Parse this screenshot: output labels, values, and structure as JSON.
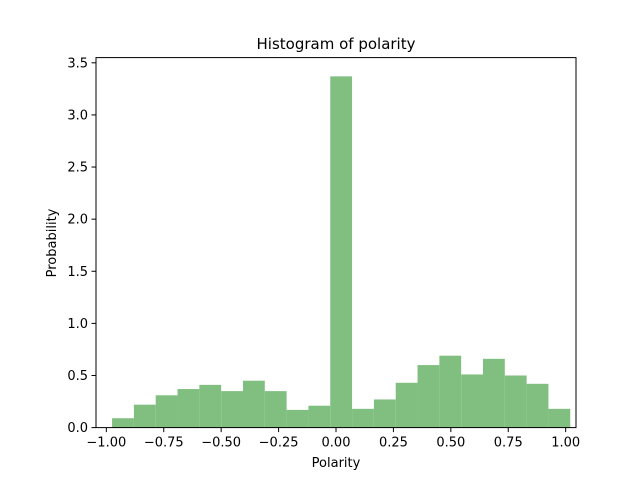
{
  "chart_data": {
    "type": "bar",
    "title": "Histogram of polarity",
    "xlabel": "Polarity",
    "ylabel": "Probability",
    "xlim": [
      -1.045,
      1.045
    ],
    "ylim": [
      0,
      3.55
    ],
    "bar_color": "#80bf80",
    "xticks": [
      -1.0,
      -0.75,
      -0.5,
      -0.25,
      0.0,
      0.25,
      0.5,
      0.75,
      1.0
    ],
    "xtick_labels": [
      "−1.00",
      "−0.75",
      "−0.50",
      "−0.25",
      "0.00",
      "0.25",
      "0.50",
      "0.75",
      "1.00"
    ],
    "yticks": [
      0.0,
      0.5,
      1.0,
      1.5,
      2.0,
      2.5,
      3.0,
      3.5
    ],
    "ytick_labels": [
      "0.0",
      "0.5",
      "1.0",
      "1.5",
      "2.0",
      "2.5",
      "3.0",
      "3.5"
    ],
    "bin_edges": [
      -0.975,
      -0.88,
      -0.785,
      -0.69,
      -0.595,
      -0.5,
      -0.405,
      -0.31,
      -0.215,
      -0.12,
      -0.025,
      0.07,
      0.165,
      0.26,
      0.355,
      0.45,
      0.545,
      0.64,
      0.735,
      0.83,
      0.925,
      1.02
    ],
    "values": [
      0.09,
      0.22,
      0.31,
      0.37,
      0.41,
      0.35,
      0.45,
      0.35,
      0.17,
      0.21,
      3.37,
      0.18,
      0.27,
      0.43,
      0.6,
      0.69,
      0.51,
      0.66,
      0.5,
      0.42,
      0.18
    ]
  }
}
